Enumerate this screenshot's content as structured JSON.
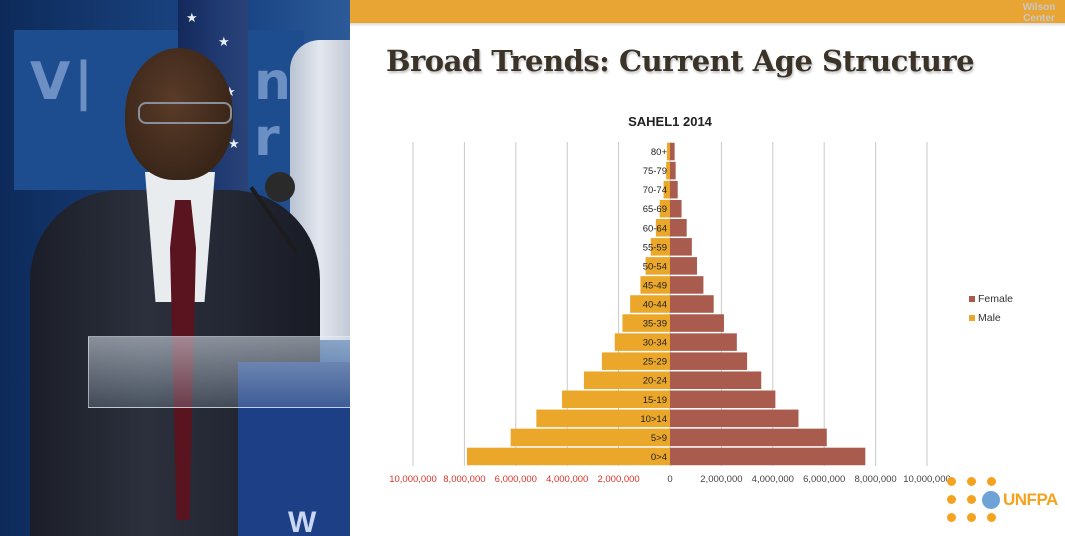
{
  "slide": {
    "title": "Broad Trends: Current Age Structure",
    "watermark_lines": [
      "Wilson",
      "Center"
    ],
    "logo_text": "UNFPA",
    "band_color": "#e8a533"
  },
  "chart_data": {
    "type": "bar",
    "orientation": "horizontal",
    "title": "SAHEL1  2014",
    "categories": [
      "0>4",
      "5>9",
      "10>14",
      "15-19",
      "20-24",
      "25-29",
      "30-34",
      "35-39",
      "40-44",
      "45-49",
      "50-54",
      "55-59",
      "60-64",
      "65-69",
      "70-74",
      "75-79",
      "80+"
    ],
    "series": [
      {
        "name": "Female",
        "color": "#a95c4e",
        "values": [
          7600000,
          6100000,
          5000000,
          4100000,
          3550000,
          3000000,
          2600000,
          2100000,
          1700000,
          1300000,
          1050000,
          850000,
          650000,
          450000,
          300000,
          220000,
          180000
        ]
      },
      {
        "name": "Male",
        "color": "#eaa72a",
        "values": [
          7900000,
          6200000,
          5200000,
          4200000,
          3350000,
          2650000,
          2150000,
          1850000,
          1550000,
          1150000,
          950000,
          750000,
          550000,
          400000,
          250000,
          150000,
          120000
        ]
      }
    ],
    "xlim": [
      -10000000,
      10000000
    ],
    "x_ticks_left": [
      "10,000,000",
      "8,000,000",
      "6,000,000",
      "4,000,000",
      "2,000,000"
    ],
    "x_ticks_right": [
      "0",
      "2,000,000",
      "4,000,000",
      "6,000,000",
      "8,000,000",
      "10,000,000"
    ],
    "left_tick_color": "#d9342b",
    "grid": true,
    "legend_position": "right",
    "legend_order": [
      "Female",
      "Male"
    ]
  }
}
